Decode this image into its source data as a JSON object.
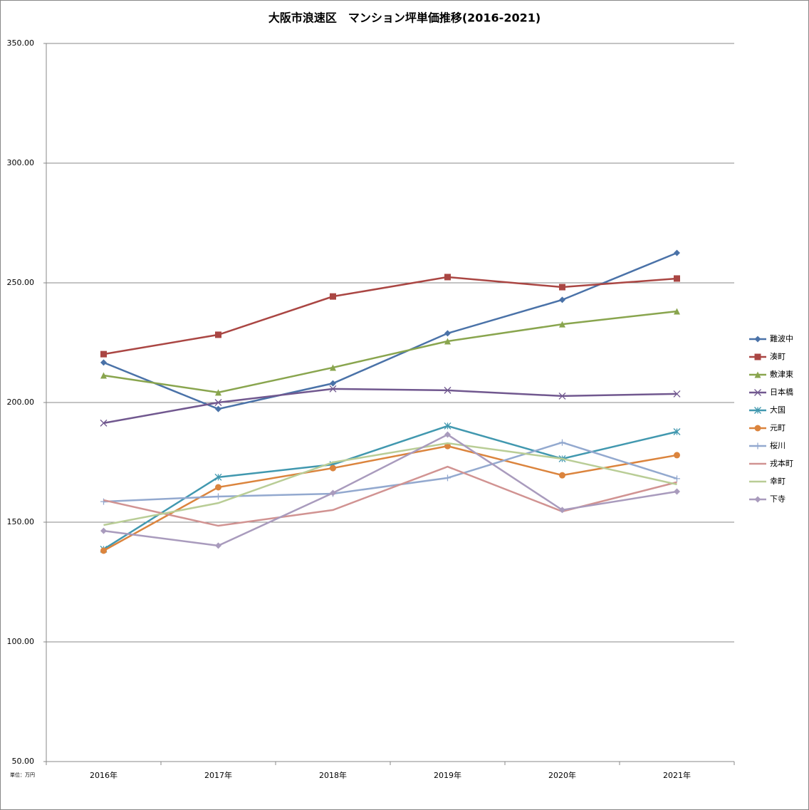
{
  "chart_data": {
    "type": "line",
    "title": "大阪市浪速区　マンション坪単価推移(2016-2021)",
    "note": "単位：万円",
    "categories": [
      "2016年",
      "2017年",
      "2018年",
      "2019年",
      "2020年",
      "2021年"
    ],
    "ylim": [
      50,
      350
    ],
    "yticks": [
      {
        "value": 50,
        "label": "50.00"
      },
      {
        "value": 100,
        "label": "100.00"
      },
      {
        "value": 150,
        "label": "150.00"
      },
      {
        "value": 200,
        "label": "200.00"
      },
      {
        "value": 250,
        "label": "250.00"
      },
      {
        "value": 300,
        "label": "300.00"
      },
      {
        "value": 350,
        "label": "350.00"
      }
    ],
    "grid": true,
    "legend": "right",
    "series": [
      {
        "name": "難波中",
        "color": "#4a72a8",
        "marker": "diamond",
        "values": [
          216.7,
          197.3,
          208.0,
          228.9,
          242.9,
          262.5
        ]
      },
      {
        "name": "湊町",
        "color": "#aa4643",
        "marker": "square",
        "values": [
          220.2,
          228.3,
          244.3,
          252.4,
          248.2,
          251.8
        ]
      },
      {
        "name": "敷津東",
        "color": "#89a54e",
        "marker": "triangle",
        "values": [
          211.3,
          204.2,
          214.6,
          225.6,
          232.7,
          238.1
        ]
      },
      {
        "name": "日本橋",
        "color": "#71588f",
        "marker": "x",
        "values": [
          191.4,
          200.0,
          205.7,
          205.1,
          202.7,
          203.6
        ]
      },
      {
        "name": "大国",
        "color": "#4198af",
        "marker": "star",
        "values": [
          138.7,
          168.8,
          174.1,
          190.2,
          176.5,
          187.8
        ]
      },
      {
        "name": "元町",
        "color": "#db843d",
        "marker": "circle",
        "values": [
          138.1,
          164.6,
          172.6,
          181.8,
          169.6,
          178.0
        ]
      },
      {
        "name": "桜川",
        "color": "#93a9cf",
        "marker": "plus",
        "values": [
          158.6,
          160.7,
          161.9,
          168.5,
          183.3,
          168.2
        ]
      },
      {
        "name": "戎本町",
        "color": "#d19392",
        "marker": "none",
        "values": [
          159.2,
          148.5,
          155.1,
          173.2,
          154.5,
          166.7
        ]
      },
      {
        "name": "幸町",
        "color": "#b9cd96",
        "marker": "none",
        "values": [
          148.8,
          158.0,
          175.0,
          183.0,
          176.5,
          165.8
        ]
      },
      {
        "name": "下寺",
        "color": "#a99bbd",
        "marker": "diamond",
        "values": [
          146.4,
          140.2,
          162.2,
          186.6,
          155.1,
          162.8
        ]
      }
    ]
  }
}
